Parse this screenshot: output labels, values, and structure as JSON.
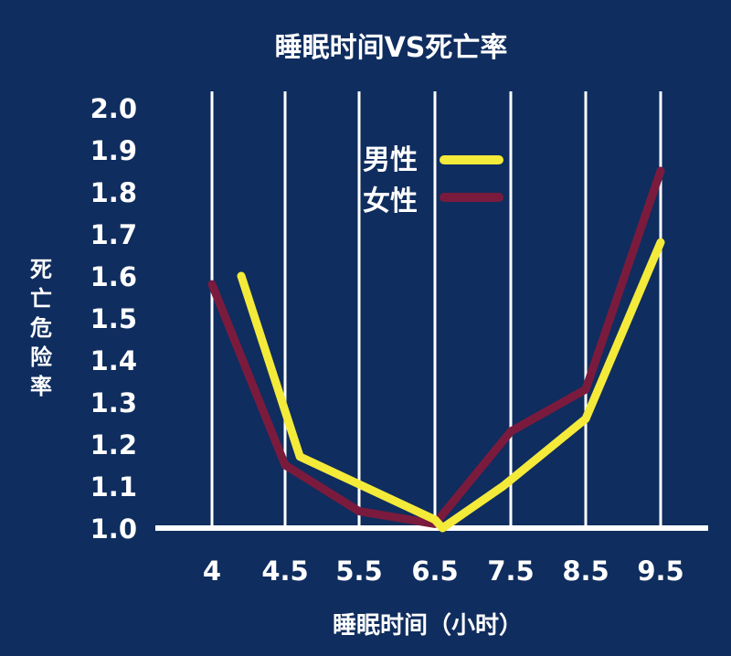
{
  "chart_data": {
    "type": "line",
    "title": "睡眠时间VS死亡率",
    "xlabel": "睡眠时间（小时）",
    "ylabel": "死亡危险率",
    "categories": [
      "4",
      "4.5",
      "5.5",
      "6.5",
      "7.5",
      "8.5",
      "9.5"
    ],
    "yticks": [
      "1.0",
      "1.1",
      "1.2",
      "1.3",
      "1.4",
      "1.5",
      "1.6",
      "1.7",
      "1.8",
      "1.9",
      "2.0"
    ],
    "ylim": [
      1.0,
      2.0
    ],
    "grid": "vertical",
    "legend_position": "top-center",
    "series": [
      {
        "name": "男性",
        "color": "#f4ea3a",
        "points": [
          [
            4.2,
            1.6
          ],
          [
            4.7,
            1.17
          ],
          [
            6.5,
            1.02
          ],
          [
            6.6,
            1.0
          ],
          [
            7.4,
            1.1
          ],
          [
            8.5,
            1.26
          ],
          [
            9.5,
            1.68
          ]
        ]
      },
      {
        "name": "女性",
        "color": "#7a1b3d",
        "points": [
          [
            4.0,
            1.58
          ],
          [
            4.5,
            1.15
          ],
          [
            5.5,
            1.04
          ],
          [
            6.5,
            1.01
          ],
          [
            7.5,
            1.23
          ],
          [
            8.5,
            1.33
          ],
          [
            9.5,
            1.85
          ]
        ]
      }
    ]
  }
}
